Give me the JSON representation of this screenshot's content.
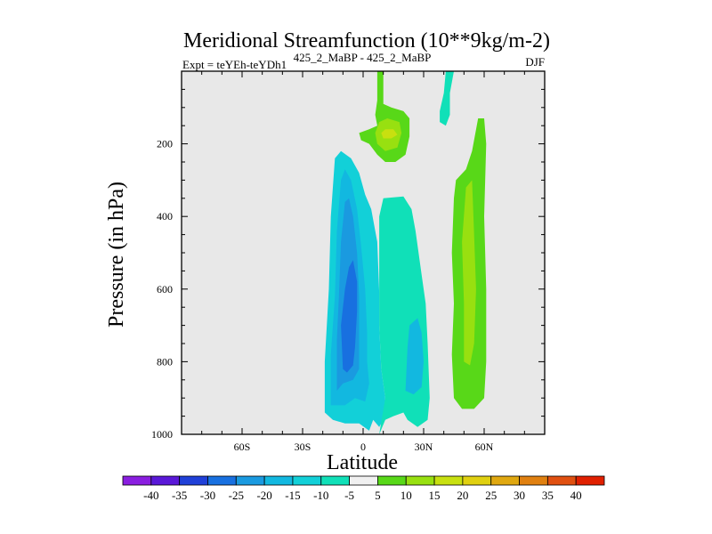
{
  "chart_data": {
    "type": "contour",
    "title": "Meridional Streamfunction (10**9kg/m-2)",
    "left_label": "Expt = teYEh-teYDh1",
    "center_label": "425_2_MaBP - 425_2_MaBP",
    "right_label": "DJF",
    "xlabel": "Latitude",
    "ylabel": "Pressure (in hPa)",
    "xlim": [
      -90,
      90
    ],
    "ylim": [
      1000,
      0
    ],
    "x_ticks": [
      {
        "value": -60,
        "label": "60S"
      },
      {
        "value": -30,
        "label": "30S"
      },
      {
        "value": 0,
        "label": "0"
      },
      {
        "value": 30,
        "label": "30N"
      },
      {
        "value": 60,
        "label": "60N"
      }
    ],
    "y_ticks": [
      {
        "value": 200,
        "label": "200"
      },
      {
        "value": 400,
        "label": "400"
      },
      {
        "value": 600,
        "label": "600"
      },
      {
        "value": 800,
        "label": "800"
      },
      {
        "value": 1000,
        "label": "1000"
      }
    ],
    "background_color": "#e8e8e8",
    "colorbar": {
      "labels": [
        "-40",
        "-35",
        "-30",
        "-25",
        "-20",
        "-15",
        "-10",
        "-5",
        "5",
        "10",
        "15",
        "20",
        "25",
        "30",
        "35",
        "40"
      ],
      "colors": [
        "#8a1ee0",
        "#5a18d8",
        "#2040d8",
        "#1870e0",
        "#1a9ae0",
        "#12b8e0",
        "#12d0d8",
        "#10e0b8",
        "#f0f0f0",
        "#58d818",
        "#98e010",
        "#c8e010",
        "#e0d010",
        "#e0a810",
        "#e08010",
        "#e05010",
        "#e02000"
      ]
    },
    "regions": [
      {
        "value": -10,
        "color": "#12d0d8",
        "points": [
          [
            -19,
            1000
          ],
          [
            -19,
            800
          ],
          [
            -17,
            600
          ],
          [
            -16,
            400
          ],
          [
            -14,
            240
          ],
          [
            -11,
            220
          ],
          [
            -6,
            240
          ],
          [
            -2,
            280
          ],
          [
            1,
            340
          ],
          [
            4,
            380
          ],
          [
            7,
            470
          ],
          [
            8,
            610
          ],
          [
            8,
            700
          ],
          [
            9,
            820
          ],
          [
            11,
            900
          ],
          [
            10,
            960
          ],
          [
            8,
            980
          ],
          [
            5,
            960
          ],
          [
            3,
            990
          ],
          [
            -2,
            970
          ],
          [
            -9,
            970
          ],
          [
            -15,
            960
          ],
          [
            -19,
            940
          ]
        ]
      },
      {
        "value": -5,
        "color": "#10e0b8",
        "points": [
          [
            8,
            1000
          ],
          [
            11,
            900
          ],
          [
            9,
            820
          ],
          [
            8,
            700
          ],
          [
            8,
            610
          ],
          [
            8,
            470
          ],
          [
            8,
            400
          ],
          [
            10,
            350
          ],
          [
            20,
            345
          ],
          [
            24,
            380
          ],
          [
            26,
            440
          ],
          [
            29,
            560
          ],
          [
            31,
            640
          ],
          [
            32,
            750
          ],
          [
            33,
            900
          ],
          [
            32,
            960
          ],
          [
            27,
            980
          ],
          [
            22,
            960
          ],
          [
            20,
            940
          ],
          [
            15,
            950
          ],
          [
            11,
            960
          ]
        ]
      },
      {
        "value": -15,
        "color": "#12b8e0",
        "points": [
          [
            -16,
            920
          ],
          [
            -16,
            780
          ],
          [
            -14,
            620
          ],
          [
            -13,
            440
          ],
          [
            -11,
            300
          ],
          [
            -9,
            270
          ],
          [
            -6,
            300
          ],
          [
            -3,
            380
          ],
          [
            -1,
            480
          ],
          [
            1,
            600
          ],
          [
            2,
            720
          ],
          [
            2,
            800
          ],
          [
            3,
            860
          ],
          [
            1,
            910
          ],
          [
            -4,
            900
          ],
          [
            -9,
            920
          ],
          [
            -14,
            920
          ]
        ]
      },
      {
        "value": -20,
        "color": "#1a9ae0",
        "points": [
          [
            -13,
            880
          ],
          [
            -13,
            740
          ],
          [
            -12,
            620
          ],
          [
            -11,
            470
          ],
          [
            -9,
            360
          ],
          [
            -7,
            350
          ],
          [
            -5,
            400
          ],
          [
            -3,
            500
          ],
          [
            -2,
            620
          ],
          [
            -2,
            720
          ],
          [
            -2,
            820
          ],
          [
            -5,
            850
          ],
          [
            -10,
            860
          ]
        ]
      },
      {
        "value": -25,
        "color": "#1870e0",
        "points": [
          [
            -10,
            820
          ],
          [
            -11,
            700
          ],
          [
            -9,
            600
          ],
          [
            -7,
            540
          ],
          [
            -5,
            520
          ],
          [
            -3,
            580
          ],
          [
            -3,
            660
          ],
          [
            -4,
            760
          ],
          [
            -5,
            810
          ],
          [
            -8,
            830
          ]
        ]
      },
      {
        "value": -15,
        "color": "#12b8e0",
        "points": [
          [
            21,
            880
          ],
          [
            22,
            760
          ],
          [
            23,
            700
          ],
          [
            27,
            680
          ],
          [
            29,
            720
          ],
          [
            30,
            800
          ],
          [
            29,
            870
          ],
          [
            25,
            890
          ]
        ]
      },
      {
        "value": 5,
        "color": "#58d818",
        "points": [
          [
            45,
            900
          ],
          [
            44,
            780
          ],
          [
            45,
            640
          ],
          [
            44,
            500
          ],
          [
            45,
            350
          ],
          [
            46,
            300
          ],
          [
            51,
            270
          ],
          [
            54,
            220
          ],
          [
            57,
            130
          ],
          [
            60,
            130
          ],
          [
            61,
            200
          ],
          [
            60,
            400
          ],
          [
            61,
            600
          ],
          [
            61,
            800
          ],
          [
            60,
            900
          ],
          [
            55,
            930
          ],
          [
            49,
            930
          ]
        ]
      },
      {
        "value": 10,
        "color": "#98e010",
        "points": [
          [
            50,
            800
          ],
          [
            50,
            640
          ],
          [
            49,
            470
          ],
          [
            51,
            320
          ],
          [
            54,
            300
          ],
          [
            55,
            450
          ],
          [
            56,
            600
          ],
          [
            55,
            750
          ],
          [
            53,
            810
          ]
        ]
      },
      {
        "value": 5,
        "color": "#58d818",
        "points": [
          [
            -2,
            170
          ],
          [
            3,
            160
          ],
          [
            7,
            150
          ],
          [
            6,
            120
          ],
          [
            7,
            80
          ],
          [
            7,
            0
          ],
          [
            10,
            0
          ],
          [
            10,
            90
          ],
          [
            14,
            100
          ],
          [
            20,
            110
          ],
          [
            23,
            130
          ],
          [
            23,
            180
          ],
          [
            21,
            230
          ],
          [
            16,
            250
          ],
          [
            11,
            250
          ],
          [
            7,
            230
          ],
          [
            3,
            200
          ],
          [
            -1,
            190
          ]
        ]
      },
      {
        "value": 10,
        "color": "#98e010",
        "points": [
          [
            6,
            170
          ],
          [
            8,
            140
          ],
          [
            12,
            130
          ],
          [
            18,
            140
          ],
          [
            19,
            170
          ],
          [
            17,
            210
          ],
          [
            11,
            220
          ],
          [
            7,
            200
          ]
        ]
      },
      {
        "value": 15,
        "color": "#c8e010",
        "points": [
          [
            9,
            170
          ],
          [
            11,
            160
          ],
          [
            15,
            160
          ],
          [
            17,
            175
          ],
          [
            14,
            185
          ],
          [
            10,
            185
          ]
        ]
      },
      {
        "value": -5,
        "color": "#10e0b8",
        "points": [
          [
            41,
            0
          ],
          [
            45,
            0
          ],
          [
            43,
            60
          ],
          [
            43,
            120
          ],
          [
            41,
            150
          ],
          [
            38,
            140
          ],
          [
            38,
            110
          ],
          [
            40,
            60
          ]
        ]
      }
    ]
  }
}
